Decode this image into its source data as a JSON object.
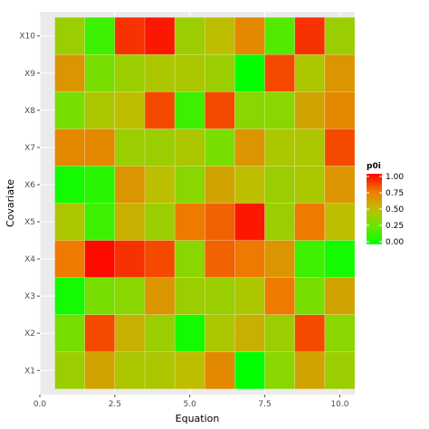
{
  "chart_data": {
    "type": "heatmap",
    "title": "",
    "xlabel": "Equation",
    "ylabel": "Covariate",
    "xlim": [
      0,
      10.5
    ],
    "x_ticks": [
      "0.0",
      "2.5",
      "5.0",
      "7.5",
      "10.0"
    ],
    "x_tick_values": [
      0,
      2.5,
      5,
      7.5,
      10
    ],
    "x": [
      1,
      2,
      3,
      4,
      5,
      6,
      7,
      8,
      9,
      10
    ],
    "y_categories": [
      "X1",
      "X2",
      "X3",
      "X4",
      "X5",
      "X6",
      "X7",
      "X8",
      "X9",
      "X10"
    ],
    "values": [
      [
        0.4,
        0.6,
        0.45,
        0.45,
        0.5,
        0.7,
        0.0,
        0.35,
        0.6,
        0.4
      ],
      [
        0.3,
        0.85,
        0.55,
        0.4,
        0.05,
        0.45,
        0.55,
        0.4,
        0.85,
        0.35
      ],
      [
        0.05,
        0.3,
        0.35,
        0.65,
        0.4,
        0.4,
        0.45,
        0.75,
        0.3,
        0.6
      ],
      [
        0.75,
        0.98,
        0.9,
        0.85,
        0.35,
        0.8,
        0.75,
        0.65,
        0.15,
        0.05
      ],
      [
        0.45,
        0.15,
        0.55,
        0.4,
        0.75,
        0.8,
        0.95,
        0.4,
        0.75,
        0.5
      ],
      [
        0.05,
        0.1,
        0.65,
        0.5,
        0.35,
        0.6,
        0.5,
        0.4,
        0.45,
        0.65
      ],
      [
        0.7,
        0.7,
        0.4,
        0.4,
        0.45,
        0.3,
        0.65,
        0.45,
        0.45,
        0.85
      ],
      [
        0.3,
        0.45,
        0.5,
        0.85,
        0.15,
        0.85,
        0.35,
        0.35,
        0.6,
        0.7
      ],
      [
        0.65,
        0.3,
        0.4,
        0.45,
        0.45,
        0.4,
        0.0,
        0.85,
        0.45,
        0.65
      ],
      [
        0.4,
        0.15,
        0.9,
        0.95,
        0.4,
        0.5,
        0.7,
        0.2,
        0.9,
        0.4
      ]
    ],
    "legend": {
      "title": "p0i",
      "placement": "right",
      "labels": [
        "1.00",
        "0.75",
        "0.50",
        "0.25",
        "0.00"
      ],
      "label_values": [
        1.0,
        0.75,
        0.5,
        0.25,
        0.0
      ],
      "low_color": "#00ff00",
      "high_color": "#ff0000"
    },
    "grid": true,
    "panel_color": "#ebebeb",
    "gridline_color": "#ffffff"
  }
}
